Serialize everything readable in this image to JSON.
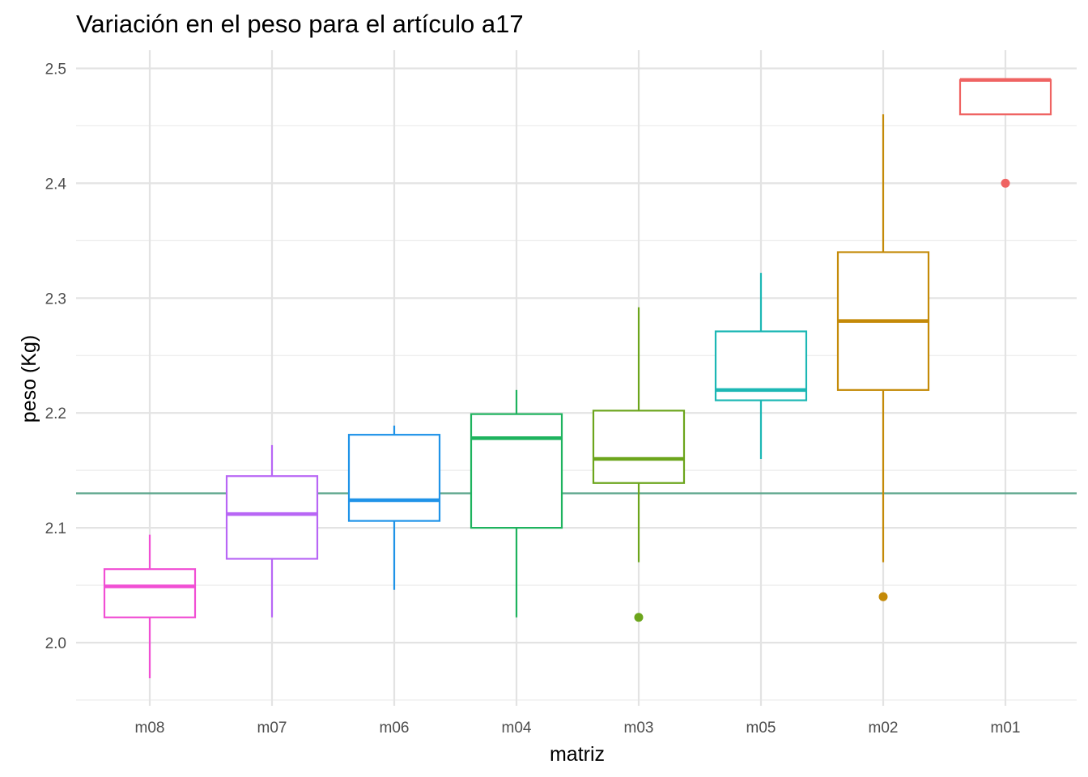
{
  "chart_data": {
    "type": "boxplot",
    "title": "Variación en el peso para el artículo a17",
    "xlabel": "matriz",
    "ylabel": "peso (Kg)",
    "ylim": [
      1.945,
      2.555
    ],
    "yticks": [
      2.0,
      2.1,
      2.2,
      2.3,
      2.4,
      2.5
    ],
    "ytick_labels": [
      "2.0",
      "2.1",
      "2.2",
      "2.3",
      "2.4",
      "2.5"
    ],
    "grid": true,
    "reference_line": {
      "y": 2.13,
      "color": "#5aa58b"
    },
    "categories": [
      "m08",
      "m07",
      "m06",
      "m04",
      "m03",
      "m05",
      "m02",
      "m01"
    ],
    "boxes": [
      {
        "category": "m08",
        "whisker_low": 1.969,
        "q1": 2.022,
        "median": 2.049,
        "q3": 2.064,
        "whisker_high": 2.094,
        "outliers": [],
        "color": "#f14fd4"
      },
      {
        "category": "m07",
        "whisker_low": 2.022,
        "q1": 2.073,
        "median": 2.112,
        "q3": 2.145,
        "whisker_high": 2.172,
        "outliers": [],
        "color": "#b866f5"
      },
      {
        "category": "m06",
        "whisker_low": 2.046,
        "q1": 2.106,
        "median": 2.124,
        "q3": 2.181,
        "whisker_high": 2.189,
        "outliers": [],
        "color": "#1f93e8"
      },
      {
        "category": "m04",
        "whisker_low": 2.022,
        "q1": 2.1,
        "median": 2.178,
        "q3": 2.199,
        "whisker_high": 2.22,
        "outliers": [],
        "color": "#1eb35e"
      },
      {
        "category": "m03",
        "whisker_low": 2.07,
        "q1": 2.139,
        "median": 2.16,
        "q3": 2.202,
        "whisker_high": 2.292,
        "outliers": [
          2.022
        ],
        "color": "#6ca51c"
      },
      {
        "category": "m05",
        "whisker_low": 2.16,
        "q1": 2.211,
        "median": 2.22,
        "q3": 2.271,
        "whisker_high": 2.322,
        "outliers": [],
        "color": "#1cb7b4"
      },
      {
        "category": "m02",
        "whisker_low": 2.07,
        "q1": 2.22,
        "median": 2.28,
        "q3": 2.34,
        "whisker_high": 2.46,
        "outliers": [
          2.04
        ],
        "color": "#c48a08"
      },
      {
        "category": "m01",
        "whisker_low": 2.46,
        "q1": 2.46,
        "median": 2.49,
        "q3": 2.49,
        "whisker_high": 2.49,
        "outliers": [
          2.4
        ],
        "color": "#ef6362"
      }
    ]
  }
}
